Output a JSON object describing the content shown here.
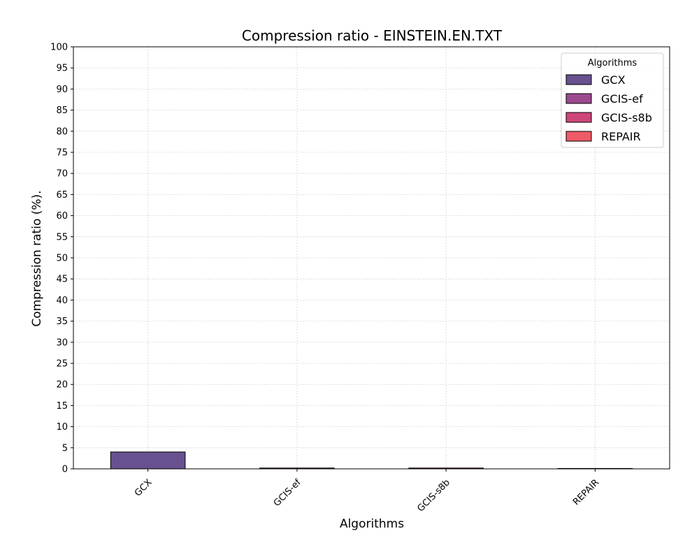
{
  "chart_data": {
    "type": "bar",
    "title": "Compression ratio -  EINSTEIN.EN.TXT",
    "xlabel": "Algorithms",
    "ylabel": "Compression ratio (%).",
    "categories": [
      "GCX",
      "GCIS-ef",
      "GCIS-s8b",
      "REPAIR"
    ],
    "values": [
      4.0,
      0.2,
      0.2,
      0.1
    ],
    "colors": [
      "#67518f",
      "#9c4a8e",
      "#cf4679",
      "#ee5a66"
    ],
    "ylim": [
      0,
      100
    ],
    "yticks": [
      0,
      5,
      10,
      15,
      20,
      25,
      30,
      35,
      40,
      45,
      50,
      55,
      60,
      65,
      70,
      75,
      80,
      85,
      90,
      95,
      100
    ],
    "grid": true,
    "legend": {
      "title": "Algorithms",
      "placement": "top-right",
      "entries": [
        "GCX",
        "GCIS-ef",
        "GCIS-s8b",
        "REPAIR"
      ]
    }
  }
}
